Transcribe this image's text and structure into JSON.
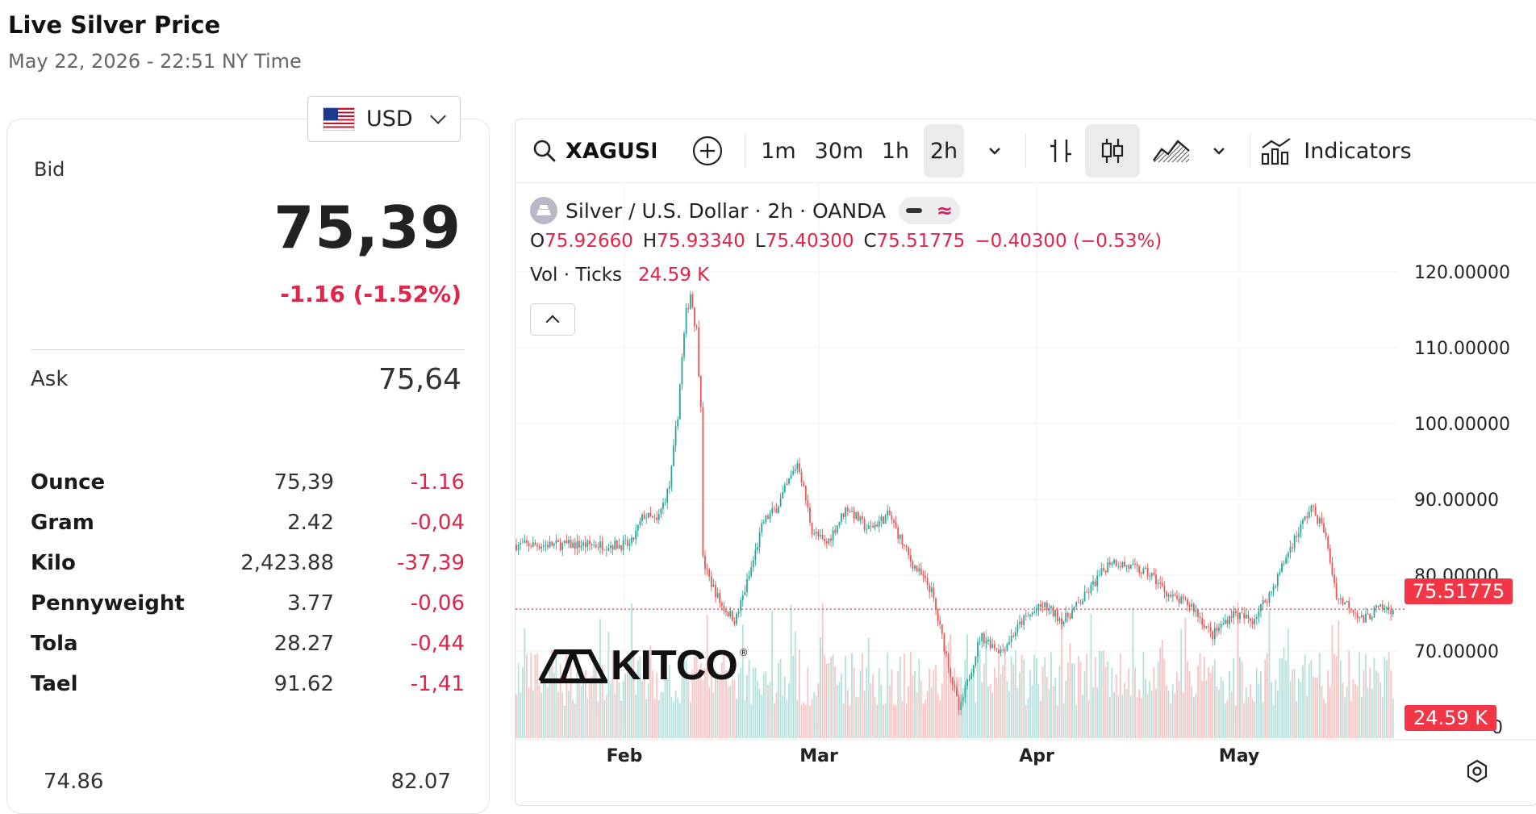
{
  "header": {
    "title": "Live Silver Price",
    "timestamp": "May 22, 2026 - 22:51 NY Time"
  },
  "currency": {
    "selected": "USD",
    "flag_icon": "us-flag-icon"
  },
  "quote": {
    "bid_label": "Bid",
    "bid": "75,39",
    "change": "-1.16 (-1.52%)",
    "ask_label": "Ask",
    "ask": "75,64",
    "change_color": "#e0244a"
  },
  "units": [
    {
      "name": "Ounce",
      "price": "75,39",
      "change": "-1.16"
    },
    {
      "name": "Gram",
      "price": "2.42",
      "change": "-0,04"
    },
    {
      "name": "Kilo",
      "price": "2,423.88",
      "change": "-37,39"
    },
    {
      "name": "Pennyweight",
      "price": "3.77",
      "change": "-0,06"
    },
    {
      "name": "Tola",
      "price": "28.27",
      "change": "-0,44"
    },
    {
      "name": "Tael",
      "price": "91.62",
      "change": "-1,41"
    }
  ],
  "range": {
    "low": "74.86",
    "high": "82.07"
  },
  "chart_widget": {
    "symbol": "XAGUSD",
    "intervals": [
      "1m",
      "30m",
      "1h",
      "2h"
    ],
    "active_interval": "2h",
    "indicators_label": "Indicators",
    "instrument": "Silver / U.S. Dollar · 2h · OANDA",
    "ohlc": {
      "o_label": "O",
      "o": "75.92660",
      "h_label": "H",
      "h": "75.93340",
      "l_label": "L",
      "l": "75.40300",
      "c_label": "C",
      "c": "75.51775",
      "change": "−0.40300 (−0.53%)"
    },
    "volume_label": "Vol · Ticks",
    "volume_value": "24.59 K",
    "last_price_tag": "75.51775",
    "volume_tag": "24.59 K",
    "watermark": "KITCO",
    "up_color": "#26a69a",
    "down_color": "#ef5350"
  },
  "chart_data": {
    "type": "candlestick",
    "x_ticks": [
      "Feb",
      "Mar",
      "Apr",
      "May"
    ],
    "y_ticks": [
      "120.00000",
      "110.00000",
      "100.00000",
      "90.00000",
      "80.00000",
      "70.00000"
    ],
    "y_tick_partial": "0",
    "ylim": [
      61,
      125
    ],
    "last_price": 75.51775,
    "series": [
      {
        "name": "price",
        "points": [
          [
            "Jan 20",
            84
          ],
          [
            "Jan 22",
            88
          ],
          [
            "Jan 24",
            87
          ],
          [
            "Jan 26",
            92
          ],
          [
            "Jan 27",
            100
          ],
          [
            "Jan 28",
            110
          ],
          [
            "Jan 29",
            118
          ],
          [
            "Jan 30",
            113
          ],
          [
            "Jan 31",
            100
          ],
          [
            "Feb 1",
            78
          ],
          [
            "Feb 2",
            71
          ],
          [
            "Feb 3",
            76
          ],
          [
            "Feb 5",
            88
          ],
          [
            "Feb 6",
            82
          ],
          [
            "Feb 7",
            72
          ],
          [
            "Feb 9",
            78
          ],
          [
            "Feb 11",
            86
          ],
          [
            "Feb 13",
            80
          ],
          [
            "Feb 15",
            76
          ],
          [
            "Feb 17",
            74
          ],
          [
            "Feb 19",
            80
          ],
          [
            "Feb 21",
            87
          ],
          [
            "Feb 23",
            89
          ],
          [
            "Feb 26",
            95
          ],
          [
            "Feb 28",
            86
          ],
          [
            "Mar 2",
            84
          ],
          [
            "Mar 5",
            89
          ],
          [
            "Mar 8",
            86
          ],
          [
            "Mar 11",
            88
          ],
          [
            "Mar 14",
            82
          ],
          [
            "Mar 17",
            78
          ],
          [
            "Mar 19",
            70
          ],
          [
            "Mar 21",
            62
          ],
          [
            "Mar 24",
            72
          ],
          [
            "Mar 27",
            70
          ],
          [
            "Mar 30",
            74
          ],
          [
            "Apr 2",
            76
          ],
          [
            "Apr 5",
            74
          ],
          [
            "Apr 8",
            77
          ],
          [
            "Apr 12",
            82
          ],
          [
            "Apr 15",
            81
          ],
          [
            "Apr 18",
            80
          ],
          [
            "Apr 21",
            77
          ],
          [
            "Apr 24",
            76
          ],
          [
            "Apr 27",
            72
          ],
          [
            "Apr 30",
            75
          ],
          [
            "May 3",
            74
          ],
          [
            "May 6",
            78
          ],
          [
            "May 9",
            84
          ],
          [
            "May 12",
            89
          ],
          [
            "May 14",
            86
          ],
          [
            "May 16",
            77
          ],
          [
            "May 18",
            76
          ],
          [
            "May 20",
            74
          ],
          [
            "May 22",
            75.5
          ]
        ]
      }
    ]
  }
}
